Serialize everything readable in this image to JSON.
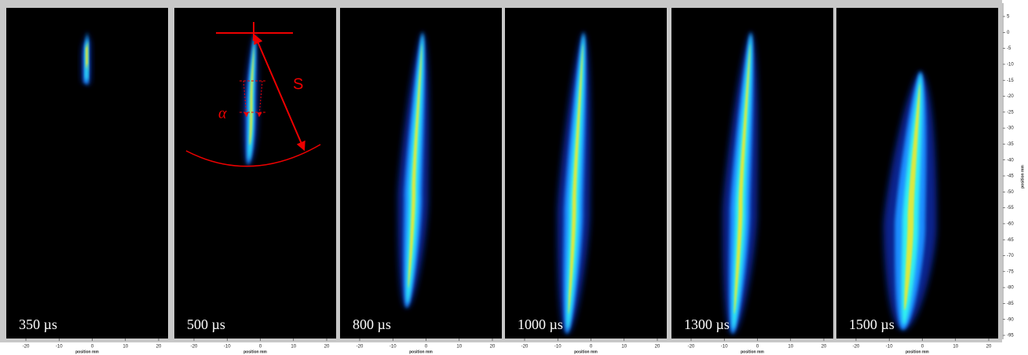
{
  "panels": [
    {
      "label": "350 µs"
    },
    {
      "label": "500 µs"
    },
    {
      "label": "800 µs"
    },
    {
      "label": "1000 µs"
    },
    {
      "label": "1300 µs"
    },
    {
      "label": "1500 µs"
    }
  ],
  "x_axis": {
    "label": "position mm",
    "ticks": [
      -20,
      -10,
      0,
      10,
      20
    ]
  },
  "y_axis": {
    "label": "position mm",
    "ticks": [
      5,
      0,
      -5,
      -10,
      -15,
      -20,
      -25,
      -30,
      -35,
      -40,
      -45,
      -50,
      -55,
      -60,
      -65,
      -70,
      -75,
      -80,
      -85,
      -90,
      -95
    ]
  },
  "annotations": {
    "distance": "S",
    "angle": "α"
  }
}
